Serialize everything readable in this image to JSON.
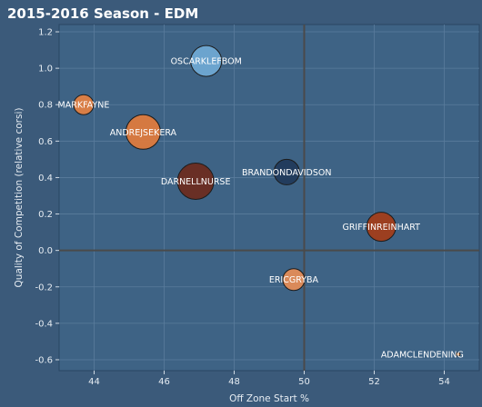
{
  "chart_data": {
    "type": "scatter",
    "title": "2015-2016 Season - EDM",
    "xlabel": "Off Zone Start %",
    "ylabel": "Quality of Competition (relative corsi)",
    "xlim": [
      43,
      55
    ],
    "ylim": [
      -0.66,
      1.24
    ],
    "xticks": [
      44,
      46,
      48,
      50,
      52,
      54
    ],
    "yticks": [
      -0.6,
      -0.4,
      -0.2,
      0.0,
      0.2,
      0.4,
      0.6,
      0.8,
      1.0,
      1.2
    ],
    "xtick_labels": [
      "44",
      "46",
      "48",
      "50",
      "52",
      "54"
    ],
    "ytick_labels": [
      "-0.6",
      "-0.4",
      "-0.2",
      "0.0",
      "0.2",
      "0.4",
      "0.6",
      "0.8",
      "1.0",
      "1.2"
    ],
    "reference_lines": {
      "x": 50,
      "y": 0
    },
    "grid": true,
    "points": [
      {
        "name": "OSCARKLEFBOM",
        "x": 47.2,
        "y": 1.04,
        "size": 17,
        "color": "#6fa8d2"
      },
      {
        "name": "MARKFAYNE",
        "x": 43.7,
        "y": 0.8,
        "size": 11,
        "color": "#e07f42"
      },
      {
        "name": "ANDREJSEKERA",
        "x": 45.4,
        "y": 0.65,
        "size": 19,
        "color": "#dd7a3d"
      },
      {
        "name": "DARNELLNURSE",
        "x": 46.9,
        "y": 0.38,
        "size": 20,
        "color": "#6b2c20"
      },
      {
        "name": "BRANDONDAVIDSON",
        "x": 49.5,
        "y": 0.43,
        "size": 14,
        "color": "#213a5b"
      },
      {
        "name": "GRIFFINREINHART",
        "x": 52.2,
        "y": 0.13,
        "size": 16,
        "color": "#a13d1a"
      },
      {
        "name": "ERICGRYBA",
        "x": 49.7,
        "y": -0.16,
        "size": 12,
        "color": "#e38c57"
      },
      {
        "name": "ADAMCLENDENING",
        "x": 54.4,
        "y": -0.57,
        "size": 2,
        "color": "#f19a55"
      }
    ]
  }
}
